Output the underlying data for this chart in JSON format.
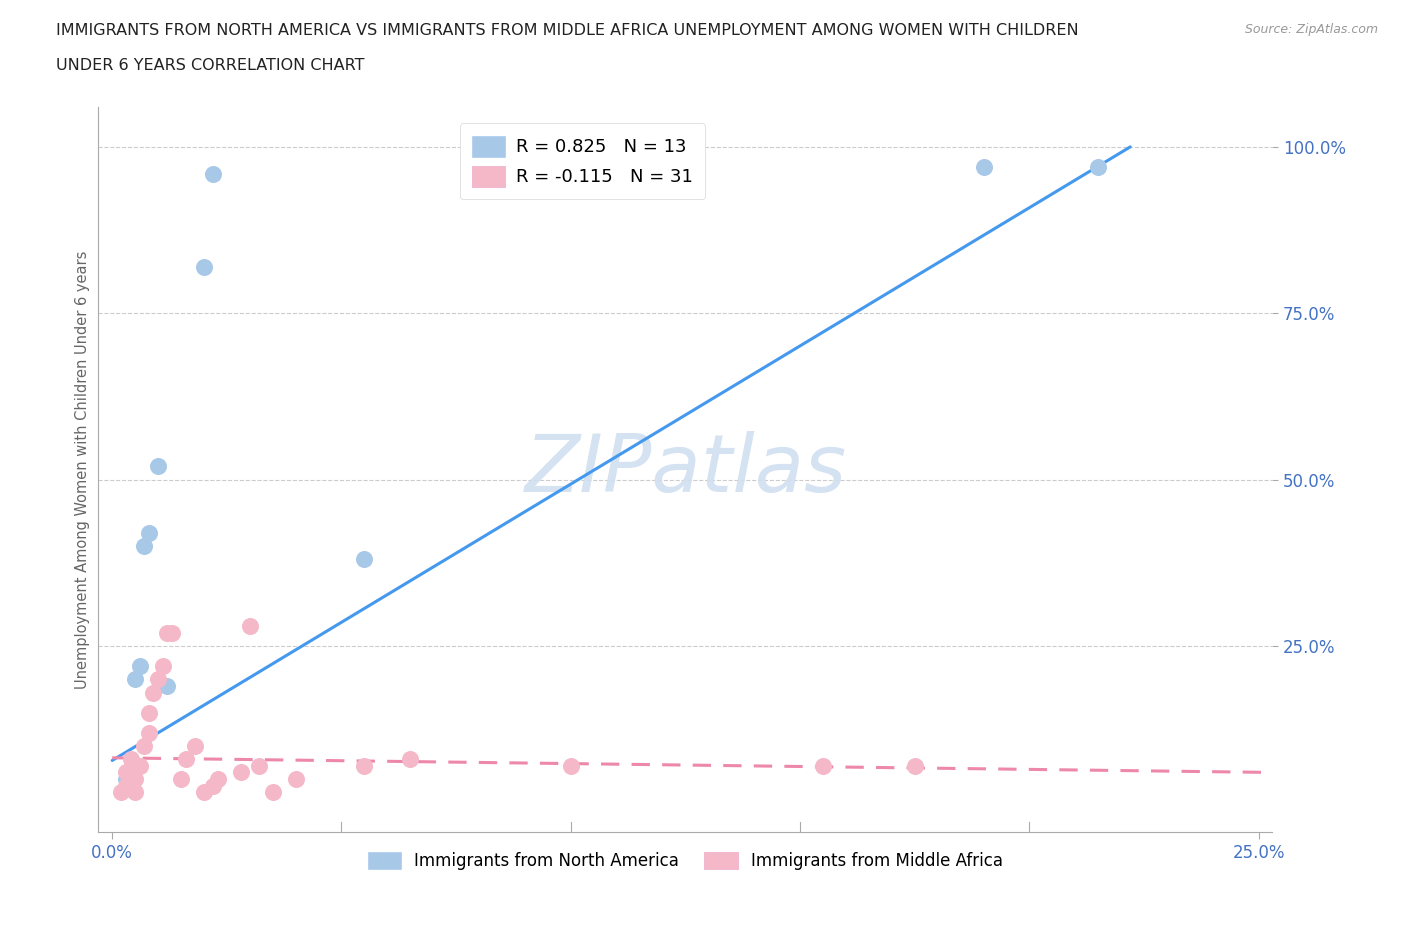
{
  "title_line1": "IMMIGRANTS FROM NORTH AMERICA VS IMMIGRANTS FROM MIDDLE AFRICA UNEMPLOYMENT AMONG WOMEN WITH CHILDREN",
  "title_line2": "UNDER 6 YEARS CORRELATION CHART",
  "source": "Source: ZipAtlas.com",
  "ylabel": "Unemployment Among Women with Children Under 6 years",
  "xlim": [
    -0.003,
    0.253
  ],
  "ylim": [
    -0.03,
    1.06
  ],
  "ytick_vals": [
    0.25,
    0.5,
    0.75,
    1.0
  ],
  "ytick_labels": [
    "25.0%",
    "50.0%",
    "75.0%",
    "100.0%"
  ],
  "xtick_vals": [
    0.0,
    0.25
  ],
  "xtick_labels": [
    "0.0%",
    "25.0%"
  ],
  "extra_xticks": [
    0.05,
    0.1,
    0.15,
    0.2
  ],
  "blue_scatter_color": "#a8c8e8",
  "pink_scatter_color": "#f4b8c8",
  "blue_line_color": "#4499ee",
  "pink_line_color": "#ee88aa",
  "axis_color": "#aaaaaa",
  "grid_color": "#cccccc",
  "tick_label_color": "#4472c4",
  "ylabel_color": "#666666",
  "title_color": "#222222",
  "source_color": "#999999",
  "watermark_color": "#d0dff0",
  "legend_blue_label": "R = 0.825   N = 13",
  "legend_pink_label": "R = -0.115   N = 31",
  "bottom_legend_blue": "Immigrants from North America",
  "bottom_legend_pink": "Immigrants from Middle Africa",
  "watermark_text": "ZIPatlas",
  "blue_line_x": [
    0.0,
    0.222
  ],
  "blue_line_y": [
    0.078,
    1.0
  ],
  "pink_line_x": [
    0.0,
    0.253
  ],
  "pink_line_y": [
    0.082,
    0.06
  ],
  "north_america_x": [
    0.003,
    0.004,
    0.005,
    0.006,
    0.007,
    0.008,
    0.01,
    0.012,
    0.02,
    0.022,
    0.055,
    0.19,
    0.215
  ],
  "north_america_y": [
    0.05,
    0.06,
    0.2,
    0.22,
    0.4,
    0.42,
    0.52,
    0.19,
    0.82,
    0.96,
    0.38,
    0.97,
    0.97
  ],
  "middle_africa_x": [
    0.002,
    0.003,
    0.003,
    0.004,
    0.005,
    0.005,
    0.006,
    0.007,
    0.008,
    0.008,
    0.009,
    0.01,
    0.011,
    0.012,
    0.013,
    0.015,
    0.016,
    0.018,
    0.02,
    0.022,
    0.023,
    0.028,
    0.03,
    0.032,
    0.035,
    0.04,
    0.055,
    0.065,
    0.1,
    0.155,
    0.175
  ],
  "middle_africa_y": [
    0.03,
    0.04,
    0.06,
    0.08,
    0.03,
    0.05,
    0.07,
    0.1,
    0.12,
    0.15,
    0.18,
    0.2,
    0.22,
    0.27,
    0.27,
    0.05,
    0.08,
    0.1,
    0.03,
    0.04,
    0.05,
    0.06,
    0.28,
    0.07,
    0.03,
    0.05,
    0.07,
    0.08,
    0.07,
    0.07,
    0.07
  ]
}
